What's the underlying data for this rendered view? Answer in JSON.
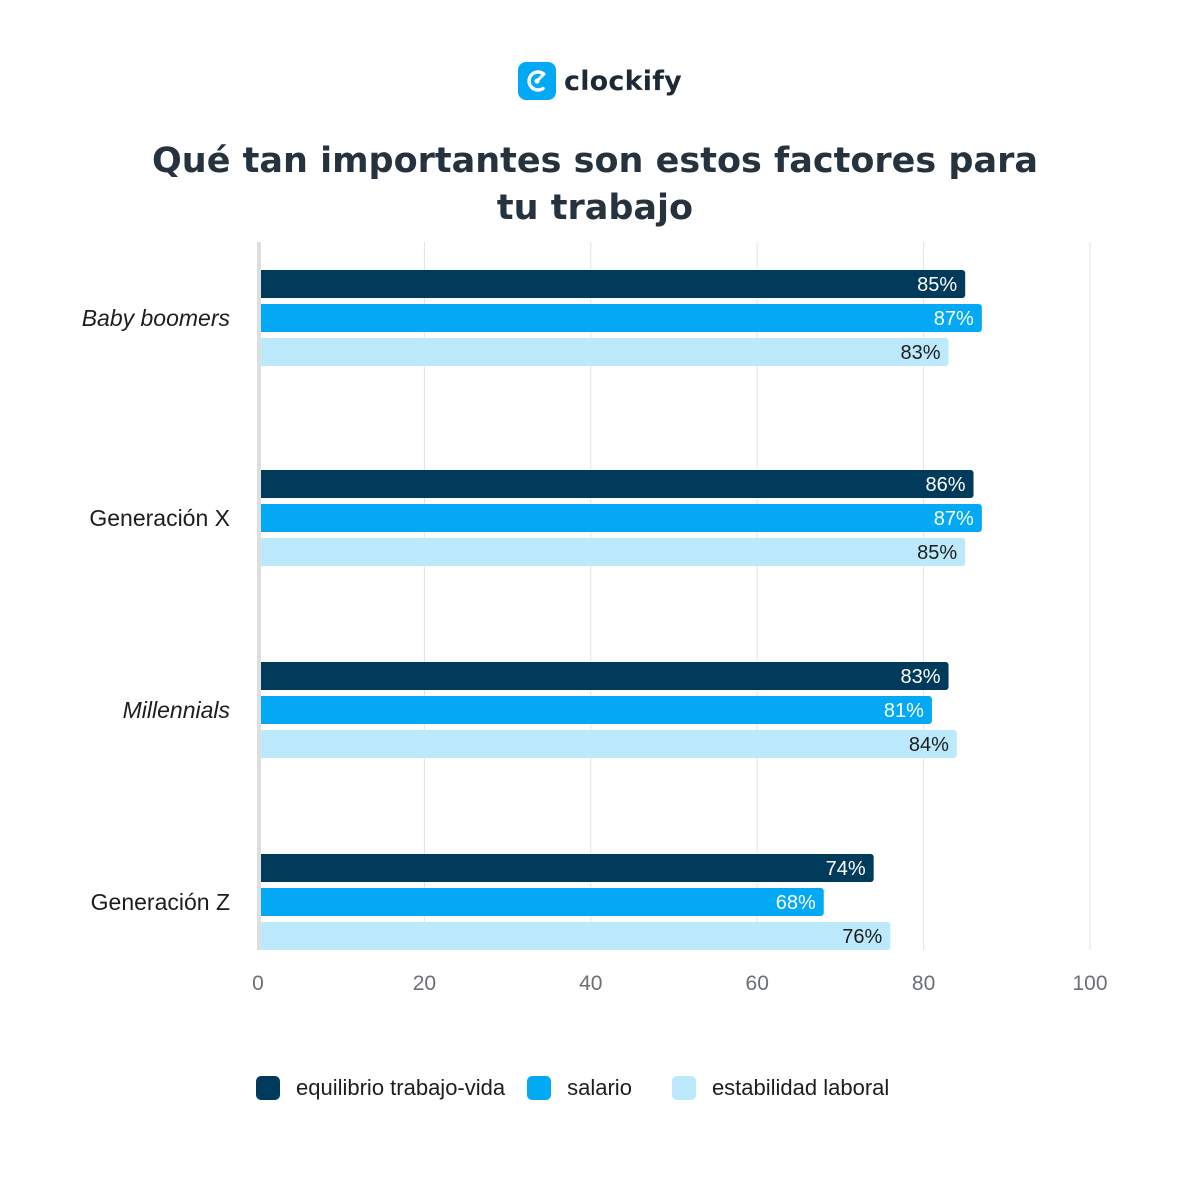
{
  "brand": {
    "name": "clockify",
    "icon": "clockify-logo-icon",
    "color": "#03a9f4"
  },
  "chart_data": {
    "type": "bar",
    "orientation": "horizontal",
    "title": "Qué tan importantes son estos factores para tu trabajo",
    "categories": [
      "Baby boomers",
      "Generación X",
      "Millennials",
      "Generación Z"
    ],
    "category_italic": [
      true,
      false,
      true,
      false
    ],
    "series": [
      {
        "name": "equilibrio trabajo-vida",
        "values": [
          85,
          86,
          83,
          74
        ],
        "labels": [
          "85%",
          "86%",
          "83%",
          "74%"
        ],
        "color": "#003b5c",
        "label_color": "#ffffff"
      },
      {
        "name": "salario",
        "values": [
          87,
          87,
          81,
          68
        ],
        "labels": [
          "87%",
          "87%",
          "81%",
          "68%"
        ],
        "color": "#03a9f4",
        "label_color": "#ffffff"
      },
      {
        "name": "estabilidad laboral",
        "values": [
          83,
          85,
          84,
          76
        ],
        "labels": [
          "83%",
          "85%",
          "84%",
          "76%"
        ],
        "color": "#bde9fc",
        "label_color": "#1d1d1d"
      }
    ],
    "xlim": [
      0,
      100
    ],
    "xticks": [
      "0",
      "20",
      "40",
      "60",
      "80",
      "100"
    ],
    "xtick_values": [
      0,
      20,
      40,
      60,
      80,
      100
    ],
    "grid": true,
    "legend_position": "bottom"
  }
}
